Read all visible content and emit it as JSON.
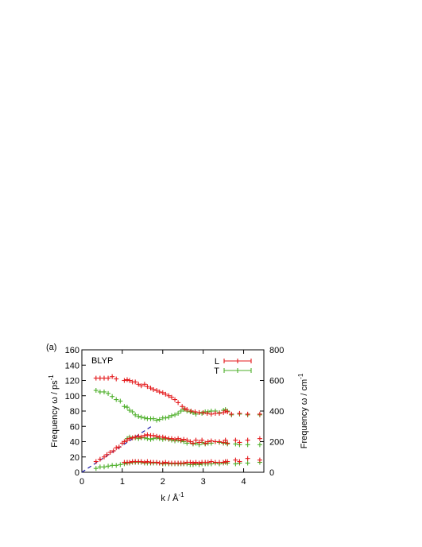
{
  "chart_data": {
    "type": "scatter",
    "panel_label": "(a)",
    "inset_label": "BLYP",
    "xlabel": "k / Å",
    "xlabel_sup": "-1",
    "ylabel_left": "Frequency ω / ps",
    "ylabel_left_sup": "-1",
    "ylabel_right": "Frequency ω / cm",
    "ylabel_right_sup": "-1",
    "xlim": [
      0,
      4.5
    ],
    "ylim_left": [
      0,
      160
    ],
    "ylim_right": [
      0,
      800
    ],
    "x_ticks": [
      "0",
      "1",
      "2",
      "3",
      "4"
    ],
    "y_left_ticks": [
      "0",
      "20",
      "40",
      "60",
      "80",
      "100",
      "120",
      "140",
      "160"
    ],
    "y_right_ticks": [
      "0",
      "200",
      "400",
      "600",
      "800"
    ],
    "grid": false,
    "legend_position": "top-right",
    "series": [
      {
        "name": "L",
        "color": "#e41a1c",
        "points": [
          [
            0.35,
            123
          ],
          [
            0.45,
            123
          ],
          [
            0.55,
            123
          ],
          [
            0.65,
            123
          ],
          [
            0.75,
            125
          ],
          [
            0.85,
            122
          ],
          [
            1.05,
            120
          ],
          [
            1.12,
            121
          ],
          [
            1.18,
            120
          ],
          [
            1.25,
            118
          ],
          [
            1.32,
            118
          ],
          [
            1.4,
            115
          ],
          [
            1.47,
            113
          ],
          [
            1.55,
            115
          ],
          [
            1.62,
            112
          ],
          [
            1.7,
            110
          ],
          [
            1.77,
            108
          ],
          [
            1.85,
            107
          ],
          [
            1.92,
            105
          ],
          [
            2.0,
            104
          ],
          [
            2.07,
            102
          ],
          [
            2.15,
            100
          ],
          [
            2.22,
            98
          ],
          [
            2.3,
            95
          ],
          [
            2.38,
            91
          ],
          [
            2.48,
            86
          ],
          [
            2.55,
            83
          ],
          [
            2.6,
            82
          ],
          [
            2.7,
            80
          ],
          [
            2.8,
            79
          ],
          [
            2.9,
            78
          ],
          [
            3.0,
            78
          ],
          [
            3.1,
            77
          ],
          [
            3.2,
            76
          ],
          [
            3.3,
            77
          ],
          [
            3.4,
            77
          ],
          [
            3.5,
            78
          ],
          [
            3.55,
            80
          ],
          [
            3.6,
            79
          ],
          [
            3.7,
            76
          ],
          [
            3.9,
            77
          ],
          [
            4.1,
            76
          ],
          [
            4.4,
            76
          ],
          [
            0.35,
            14
          ],
          [
            0.45,
            17
          ],
          [
            0.55,
            20
          ],
          [
            0.62,
            23
          ],
          [
            0.7,
            26
          ],
          [
            0.78,
            28
          ],
          [
            0.85,
            32
          ],
          [
            0.92,
            33
          ],
          [
            1.0,
            38
          ],
          [
            1.05,
            40
          ],
          [
            1.12,
            42
          ],
          [
            1.18,
            44
          ],
          [
            1.25,
            45
          ],
          [
            1.32,
            46
          ],
          [
            1.4,
            47
          ],
          [
            1.47,
            46
          ],
          [
            1.55,
            48
          ],
          [
            1.62,
            49
          ],
          [
            1.7,
            48
          ],
          [
            1.77,
            48
          ],
          [
            1.85,
            47
          ],
          [
            1.92,
            46
          ],
          [
            2.0,
            46
          ],
          [
            2.07,
            45
          ],
          [
            2.15,
            44
          ],
          [
            2.22,
            44
          ],
          [
            2.3,
            43
          ],
          [
            2.38,
            44
          ],
          [
            2.45,
            42
          ],
          [
            2.52,
            43
          ],
          [
            2.6,
            42
          ],
          [
            2.68,
            40
          ],
          [
            2.75,
            38
          ],
          [
            2.82,
            42
          ],
          [
            2.9,
            39
          ],
          [
            2.97,
            42
          ],
          [
            3.05,
            38
          ],
          [
            3.12,
            40
          ],
          [
            3.2,
            41
          ],
          [
            3.3,
            40
          ],
          [
            3.4,
            40
          ],
          [
            3.5,
            39
          ],
          [
            3.55,
            42
          ],
          [
            3.6,
            38
          ],
          [
            3.8,
            42
          ],
          [
            3.9,
            39
          ],
          [
            4.1,
            42
          ],
          [
            4.4,
            44
          ],
          [
            1.05,
            13
          ],
          [
            1.12,
            13
          ],
          [
            1.18,
            13
          ],
          [
            1.25,
            14
          ],
          [
            1.32,
            14
          ],
          [
            1.4,
            14
          ],
          [
            1.47,
            14
          ],
          [
            1.55,
            13
          ],
          [
            1.62,
            14
          ],
          [
            1.7,
            13
          ],
          [
            1.77,
            13
          ],
          [
            1.85,
            13
          ],
          [
            1.92,
            12
          ],
          [
            2.0,
            12
          ],
          [
            2.07,
            13
          ],
          [
            2.15,
            12
          ],
          [
            2.22,
            12
          ],
          [
            2.3,
            12
          ],
          [
            2.38,
            12
          ],
          [
            2.45,
            12
          ],
          [
            2.52,
            12
          ],
          [
            2.6,
            13
          ],
          [
            2.68,
            13
          ],
          [
            2.75,
            12
          ],
          [
            2.82,
            13
          ],
          [
            2.9,
            12
          ],
          [
            2.97,
            13
          ],
          [
            3.05,
            13
          ],
          [
            3.12,
            13
          ],
          [
            3.2,
            14
          ],
          [
            3.3,
            13
          ],
          [
            3.4,
            13
          ],
          [
            3.5,
            13
          ],
          [
            3.55,
            14
          ],
          [
            3.6,
            14
          ],
          [
            3.8,
            16
          ],
          [
            3.9,
            14
          ],
          [
            4.1,
            18
          ],
          [
            4.4,
            16
          ]
        ]
      },
      {
        "name": "T",
        "color": "#4daf2a",
        "points": [
          [
            0.35,
            107
          ],
          [
            0.45,
            105
          ],
          [
            0.55,
            105
          ],
          [
            0.65,
            103
          ],
          [
            0.75,
            99
          ],
          [
            0.85,
            95
          ],
          [
            0.95,
            93
          ],
          [
            1.05,
            86
          ],
          [
            1.12,
            85
          ],
          [
            1.18,
            81
          ],
          [
            1.25,
            79
          ],
          [
            1.32,
            75
          ],
          [
            1.4,
            73
          ],
          [
            1.47,
            72
          ],
          [
            1.55,
            71
          ],
          [
            1.62,
            70
          ],
          [
            1.7,
            70
          ],
          [
            1.77,
            70
          ],
          [
            1.85,
            68
          ],
          [
            1.92,
            69
          ],
          [
            2.0,
            71
          ],
          [
            2.07,
            71
          ],
          [
            2.15,
            72
          ],
          [
            2.22,
            74
          ],
          [
            2.3,
            75
          ],
          [
            2.38,
            77
          ],
          [
            2.45,
            80
          ],
          [
            2.52,
            82
          ],
          [
            2.6,
            80
          ],
          [
            2.68,
            79
          ],
          [
            2.75,
            78
          ],
          [
            2.82,
            76
          ],
          [
            2.9,
            78
          ],
          [
            2.97,
            77
          ],
          [
            3.05,
            79
          ],
          [
            3.12,
            79
          ],
          [
            3.2,
            80
          ],
          [
            3.3,
            80
          ],
          [
            3.4,
            78
          ],
          [
            3.5,
            81
          ],
          [
            3.55,
            82
          ],
          [
            3.6,
            80
          ],
          [
            3.7,
            75
          ],
          [
            3.9,
            76
          ],
          [
            4.1,
            75
          ],
          [
            4.4,
            75
          ],
          [
            0.35,
            5
          ],
          [
            0.45,
            7
          ],
          [
            0.55,
            7
          ],
          [
            0.65,
            8
          ],
          [
            0.75,
            9
          ],
          [
            0.85,
            9
          ],
          [
            0.95,
            10
          ],
          [
            1.05,
            11
          ],
          [
            1.12,
            12
          ],
          [
            1.18,
            12
          ],
          [
            1.25,
            13
          ],
          [
            1.32,
            13
          ],
          [
            1.4,
            13
          ],
          [
            1.47,
            13
          ],
          [
            1.55,
            12
          ],
          [
            1.62,
            12
          ],
          [
            1.7,
            12
          ],
          [
            1.77,
            12
          ],
          [
            1.85,
            12
          ],
          [
            1.92,
            12
          ],
          [
            2.0,
            11
          ],
          [
            2.07,
            11
          ],
          [
            2.15,
            11
          ],
          [
            2.22,
            11
          ],
          [
            2.3,
            11
          ],
          [
            2.38,
            11
          ],
          [
            2.45,
            11
          ],
          [
            2.52,
            11
          ],
          [
            2.6,
            11
          ],
          [
            2.68,
            10
          ],
          [
            2.75,
            10
          ],
          [
            2.82,
            11
          ],
          [
            2.9,
            10
          ],
          [
            2.97,
            11
          ],
          [
            3.05,
            11
          ],
          [
            3.12,
            11
          ],
          [
            3.2,
            11
          ],
          [
            3.3,
            12
          ],
          [
            3.4,
            11
          ],
          [
            3.5,
            12
          ],
          [
            3.55,
            13
          ],
          [
            3.6,
            12
          ],
          [
            3.8,
            11
          ],
          [
            3.9,
            12
          ],
          [
            4.1,
            12
          ],
          [
            4.4,
            13
          ],
          [
            1.05,
            40
          ],
          [
            1.12,
            44
          ],
          [
            1.18,
            46
          ],
          [
            1.25,
            45
          ],
          [
            1.32,
            45
          ],
          [
            1.4,
            44
          ],
          [
            1.47,
            45
          ],
          [
            1.55,
            45
          ],
          [
            1.62,
            44
          ],
          [
            1.7,
            43
          ],
          [
            1.77,
            44
          ],
          [
            1.85,
            45
          ],
          [
            1.92,
            44
          ],
          [
            2.0,
            43
          ],
          [
            2.07,
            44
          ],
          [
            2.15,
            43
          ],
          [
            2.22,
            42
          ],
          [
            2.3,
            41
          ],
          [
            2.38,
            42
          ],
          [
            2.45,
            41
          ],
          [
            2.52,
            40
          ],
          [
            2.6,
            38
          ],
          [
            2.68,
            40
          ],
          [
            2.75,
            37
          ],
          [
            2.82,
            38
          ],
          [
            2.9,
            36
          ],
          [
            2.97,
            39
          ],
          [
            3.05,
            37
          ],
          [
            3.12,
            38
          ],
          [
            3.2,
            38
          ],
          [
            3.3,
            40
          ],
          [
            3.4,
            39
          ],
          [
            3.5,
            38
          ],
          [
            3.55,
            39
          ],
          [
            3.6,
            37
          ],
          [
            3.8,
            37
          ],
          [
            3.9,
            36
          ],
          [
            4.1,
            36
          ],
          [
            4.4,
            36
          ]
        ]
      }
    ],
    "reference_line": {
      "style": "dashed",
      "color": "#1a1aa6",
      "from": [
        0,
        0
      ],
      "to": [
        1.72,
        60
      ]
    }
  }
}
